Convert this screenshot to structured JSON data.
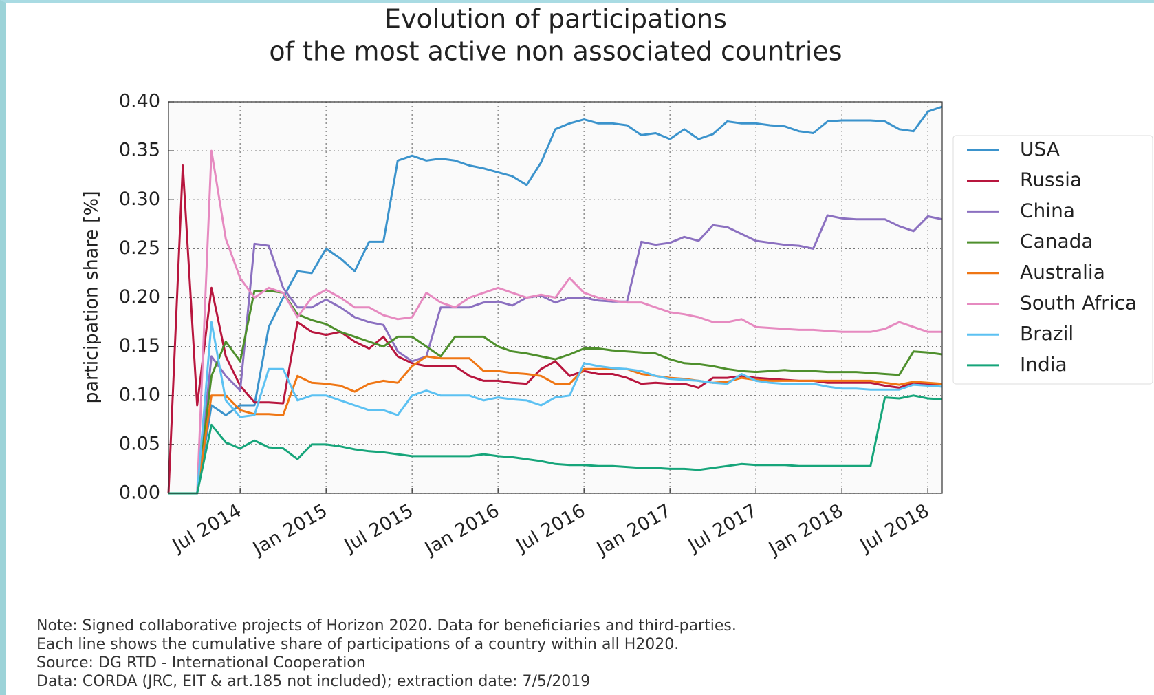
{
  "chart_data": {
    "type": "line",
    "title": [
      "Evolution of participations",
      "of the most active non associated countries"
    ],
    "ylabel": "participation share [%]",
    "notes": [
      "Note: Signed collaborative projects of Horizon 2020. Data for beneficiaries and third-parties.",
      "Each line shows the cumulative share of participations of a country within all H2020.",
      "Source: DG RTD - International Cooperation",
      "Data: CORDA (JRC, EIT & art.185 not included); extraction date: 7/5/2019"
    ],
    "x": [
      "2014-02",
      "2014-03",
      "2014-04",
      "2014-05",
      "2014-06",
      "2014-07",
      "2014-08",
      "2014-09",
      "2014-10",
      "2014-11",
      "2014-12",
      "2015-01",
      "2015-02",
      "2015-03",
      "2015-04",
      "2015-05",
      "2015-06",
      "2015-07",
      "2015-08",
      "2015-09",
      "2015-10",
      "2015-11",
      "2015-12",
      "2016-01",
      "2016-02",
      "2016-03",
      "2016-04",
      "2016-05",
      "2016-06",
      "2016-07",
      "2016-08",
      "2016-09",
      "2016-10",
      "2016-11",
      "2016-12",
      "2017-01",
      "2017-02",
      "2017-03",
      "2017-04",
      "2017-05",
      "2017-06",
      "2017-07",
      "2017-08",
      "2017-09",
      "2017-10",
      "2017-11",
      "2017-12",
      "2018-01",
      "2018-02",
      "2018-03",
      "2018-04",
      "2018-05",
      "2018-06",
      "2018-07",
      "2018-08"
    ],
    "xlim": [
      "2014-02",
      "2018-08"
    ],
    "xticks": [
      {
        "value": "2014-07",
        "label": "Jul 2014"
      },
      {
        "value": "2015-01",
        "label": "Jan 2015"
      },
      {
        "value": "2015-07",
        "label": "Jul 2015"
      },
      {
        "value": "2016-01",
        "label": "Jan 2016"
      },
      {
        "value": "2016-07",
        "label": "Jul 2016"
      },
      {
        "value": "2017-01",
        "label": "Jan 2017"
      },
      {
        "value": "2017-07",
        "label": "Jul 2017"
      },
      {
        "value": "2018-01",
        "label": "Jan 2018"
      },
      {
        "value": "2018-07",
        "label": "Jul 2018"
      }
    ],
    "ylim": [
      0,
      0.4
    ],
    "yticks": [
      {
        "value": 0,
        "label": "0.00"
      },
      0.05,
      {
        "value": 0.1,
        "label": "0.10"
      },
      0.15,
      {
        "value": 0.2,
        "label": "0.20"
      },
      0.25,
      {
        "value": 0.3,
        "label": "0.30"
      },
      0.35,
      {
        "value": 0.4,
        "label": "0.40"
      }
    ],
    "grid": true,
    "legend": "right",
    "series": [
      {
        "name": "USA",
        "color": "#3b93cc",
        "values": [
          0,
          0,
          0,
          0.09,
          0.08,
          0.09,
          0.09,
          0.17,
          0.2,
          0.227,
          0.225,
          0.25,
          0.24,
          0.227,
          0.257,
          0.257,
          0.34,
          0.345,
          0.34,
          0.342,
          0.34,
          0.335,
          0.332,
          0.328,
          0.324,
          0.315,
          0.338,
          0.372,
          0.378,
          0.382,
          0.378,
          0.378,
          0.376,
          0.366,
          0.368,
          0.362,
          0.372,
          0.362,
          0.367,
          0.38,
          0.378,
          0.378,
          0.376,
          0.375,
          0.37,
          0.368,
          0.38,
          0.381,
          0.381,
          0.381,
          0.38,
          0.372,
          0.37,
          0.39,
          0.395
        ]
      },
      {
        "name": "Russia",
        "color": "#b8163e",
        "values": [
          0,
          0.335,
          0.09,
          0.21,
          0.14,
          0.11,
          0.093,
          0.093,
          0.092,
          0.175,
          0.165,
          0.162,
          0.165,
          0.155,
          0.148,
          0.16,
          0.14,
          0.133,
          0.13,
          0.13,
          0.13,
          0.12,
          0.115,
          0.115,
          0.113,
          0.112,
          0.127,
          0.135,
          0.12,
          0.125,
          0.122,
          0.122,
          0.118,
          0.112,
          0.113,
          0.112,
          0.112,
          0.108,
          0.118,
          0.118,
          0.12,
          0.118,
          0.117,
          0.116,
          0.115,
          0.115,
          0.113,
          0.113,
          0.113,
          0.113,
          0.11,
          0.108,
          0.113,
          0.112,
          0.112
        ]
      },
      {
        "name": "China",
        "color": "#8b70c0",
        "values": [
          0,
          0,
          0,
          0.14,
          0.12,
          0.105,
          0.255,
          0.253,
          0.21,
          0.19,
          0.19,
          0.198,
          0.19,
          0.18,
          0.175,
          0.172,
          0.145,
          0.135,
          0.14,
          0.19,
          0.19,
          0.19,
          0.195,
          0.196,
          0.192,
          0.2,
          0.202,
          0.195,
          0.2,
          0.2,
          0.197,
          0.196,
          0.196,
          0.257,
          0.254,
          0.256,
          0.262,
          0.258,
          0.274,
          0.272,
          0.265,
          0.258,
          0.256,
          0.254,
          0.253,
          0.25,
          0.284,
          0.281,
          0.28,
          0.28,
          0.28,
          0.273,
          0.268,
          0.283,
          0.28
        ]
      },
      {
        "name": "Canada",
        "color": "#4e8f2c",
        "values": [
          0,
          0,
          0,
          0.12,
          0.155,
          0.135,
          0.207,
          0.207,
          0.205,
          0.183,
          0.177,
          0.173,
          0.165,
          0.16,
          0.155,
          0.15,
          0.16,
          0.16,
          0.15,
          0.14,
          0.16,
          0.16,
          0.16,
          0.15,
          0.145,
          0.143,
          0.14,
          0.137,
          0.142,
          0.148,
          0.148,
          0.146,
          0.145,
          0.144,
          0.143,
          0.137,
          0.133,
          0.132,
          0.13,
          0.127,
          0.125,
          0.124,
          0.125,
          0.126,
          0.125,
          0.125,
          0.124,
          0.124,
          0.124,
          0.123,
          0.122,
          0.121,
          0.145,
          0.144,
          0.142
        ]
      },
      {
        "name": "Australia",
        "color": "#ef7614",
        "values": [
          0,
          0,
          0,
          0.1,
          0.1,
          0.085,
          0.081,
          0.081,
          0.08,
          0.12,
          0.113,
          0.112,
          0.11,
          0.104,
          0.112,
          0.115,
          0.113,
          0.13,
          0.14,
          0.138,
          0.138,
          0.138,
          0.125,
          0.125,
          0.123,
          0.122,
          0.12,
          0.112,
          0.112,
          0.127,
          0.127,
          0.127,
          0.127,
          0.122,
          0.12,
          0.118,
          0.117,
          0.115,
          0.113,
          0.114,
          0.118,
          0.116,
          0.115,
          0.115,
          0.115,
          0.115,
          0.115,
          0.115,
          0.115,
          0.115,
          0.113,
          0.111,
          0.114,
          0.113,
          0.112
        ]
      },
      {
        "name": "South Africa",
        "color": "#e68ac0",
        "values": [
          0,
          0,
          0,
          0.35,
          0.26,
          0.22,
          0.2,
          0.21,
          0.205,
          0.18,
          0.2,
          0.208,
          0.2,
          0.19,
          0.19,
          0.182,
          0.178,
          0.18,
          0.205,
          0.195,
          0.19,
          0.2,
          0.205,
          0.21,
          0.205,
          0.2,
          0.203,
          0.2,
          0.22,
          0.205,
          0.2,
          0.197,
          0.195,
          0.195,
          0.19,
          0.185,
          0.183,
          0.18,
          0.175,
          0.175,
          0.178,
          0.17,
          0.169,
          0.168,
          0.167,
          0.167,
          0.166,
          0.165,
          0.165,
          0.165,
          0.168,
          0.175,
          0.17,
          0.165,
          0.165
        ]
      },
      {
        "name": "Brazil",
        "color": "#5cc1f2",
        "values": [
          0,
          0,
          0,
          0.175,
          0.095,
          0.078,
          0.08,
          0.127,
          0.127,
          0.095,
          0.1,
          0.1,
          0.095,
          0.09,
          0.085,
          0.085,
          0.08,
          0.1,
          0.105,
          0.1,
          0.1,
          0.1,
          0.095,
          0.098,
          0.096,
          0.095,
          0.09,
          0.098,
          0.1,
          0.133,
          0.13,
          0.128,
          0.127,
          0.125,
          0.12,
          0.117,
          0.116,
          0.115,
          0.113,
          0.112,
          0.122,
          0.115,
          0.113,
          0.112,
          0.112,
          0.112,
          0.109,
          0.107,
          0.107,
          0.106,
          0.106,
          0.106,
          0.111,
          0.11,
          0.109
        ]
      },
      {
        "name": "India",
        "color": "#16a57a",
        "values": [
          0,
          0,
          0,
          0.07,
          0.052,
          0.046,
          0.054,
          0.047,
          0.046,
          0.035,
          0.05,
          0.05,
          0.048,
          0.045,
          0.043,
          0.042,
          0.04,
          0.038,
          0.038,
          0.038,
          0.038,
          0.038,
          0.04,
          0.038,
          0.037,
          0.035,
          0.033,
          0.03,
          0.029,
          0.029,
          0.028,
          0.028,
          0.027,
          0.026,
          0.026,
          0.025,
          0.025,
          0.024,
          0.026,
          0.028,
          0.03,
          0.029,
          0.029,
          0.029,
          0.028,
          0.028,
          0.028,
          0.028,
          0.028,
          0.028,
          0.098,
          0.097,
          0.1,
          0.097,
          0.096
        ]
      }
    ]
  }
}
